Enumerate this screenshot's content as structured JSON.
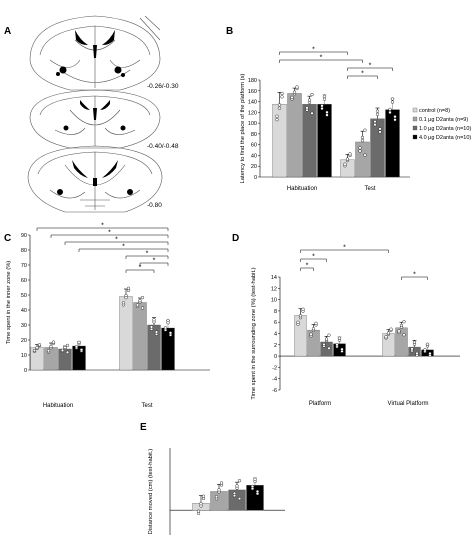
{
  "panels": {
    "A": {
      "letter": "A",
      "atlas_levels": [
        "-0.26/-0.30",
        "-0.40/-0.48",
        "-0.80"
      ]
    },
    "B": {
      "letter": "B"
    },
    "C": {
      "letter": "C"
    },
    "D": {
      "letter": "D"
    },
    "E": {
      "letter": "E"
    }
  },
  "significance_marker": "*",
  "colors": {
    "control": "#d9d9d9",
    "dose_01": "#a6a6a6",
    "dose_10": "#6b6b6b",
    "dose_40": "#000000"
  },
  "chart_data": [
    {
      "id": "B",
      "type": "bar",
      "ylabel": "Latency to find the place of the platform (s)",
      "ylim": [
        0,
        180
      ],
      "yticks": [
        0,
        20,
        40,
        60,
        80,
        100,
        120,
        140,
        160,
        180
      ],
      "categories": [
        "Habituation",
        "Test"
      ],
      "legend_position": "right",
      "series": [
        {
          "name": "control (n=8)",
          "values": [
            135,
            32
          ],
          "errors": [
            22,
            10
          ]
        },
        {
          "name": "0.1 µg D2anta (n=9)",
          "values": [
            155,
            65
          ],
          "errors": [
            10,
            20
          ]
        },
        {
          "name": "1.0 µg D2anta (n=10)",
          "values": [
            135,
            108
          ],
          "errors": [
            15,
            20
          ]
        },
        {
          "name": "4.0 µg D2anta (n=10)",
          "values": [
            135,
            125
          ],
          "errors": [
            18,
            20
          ]
        }
      ],
      "significance_brackets": 4
    },
    {
      "id": "C",
      "type": "bar",
      "ylabel": "Time spent in the inner zone (%)",
      "ylim": [
        0,
        90
      ],
      "yticks": [
        0,
        10,
        20,
        30,
        40,
        50,
        60,
        70,
        80,
        90
      ],
      "categories": [
        "Habituation",
        "Test"
      ],
      "series": [
        {
          "values": [
            15,
            49
          ],
          "errors": [
            2,
            5
          ]
        },
        {
          "values": [
            15,
            45
          ],
          "errors": [
            3,
            3
          ]
        },
        {
          "values": [
            14,
            30
          ],
          "errors": [
            2,
            5
          ]
        },
        {
          "values": [
            16,
            28
          ],
          "errors": [
            3,
            5
          ]
        }
      ],
      "significance_brackets": 7
    },
    {
      "id": "D",
      "type": "bar",
      "ylabel": "Time spent in the surrounding zone (%) (test-habit.)",
      "ylim": [
        -6,
        14
      ],
      "yticks": [
        -6,
        -4,
        -2,
        0,
        2,
        4,
        6,
        8,
        10,
        12,
        14
      ],
      "categories": [
        "Platform",
        "Virtual Platform"
      ],
      "series": [
        {
          "values": [
            7.2,
            4.0
          ],
          "errors": [
            1.2,
            0.7
          ]
        },
        {
          "values": [
            4.6,
            5.0
          ],
          "errors": [
            1.0,
            1.0
          ]
        },
        {
          "values": [
            2.5,
            1.6
          ],
          "errors": [
            1.0,
            1.2
          ]
        },
        {
          "values": [
            2.2,
            1.1
          ],
          "errors": [
            1.2,
            1.0
          ]
        }
      ],
      "significance_brackets": 4
    },
    {
      "id": "E",
      "type": "bar",
      "ylabel": "Distance moved (cm) (test-habit.)",
      "ylim": [
        -800,
        2000
      ],
      "yticks": [],
      "categories": [
        ""
      ],
      "series": [
        {
          "values": [
            220
          ],
          "errors": [
            250
          ]
        },
        {
          "values": [
            600
          ],
          "errors": [
            230
          ]
        },
        {
          "values": [
            650
          ],
          "errors": [
            250
          ]
        },
        {
          "values": [
            800
          ],
          "errors": [
            240
          ]
        }
      ]
    }
  ]
}
